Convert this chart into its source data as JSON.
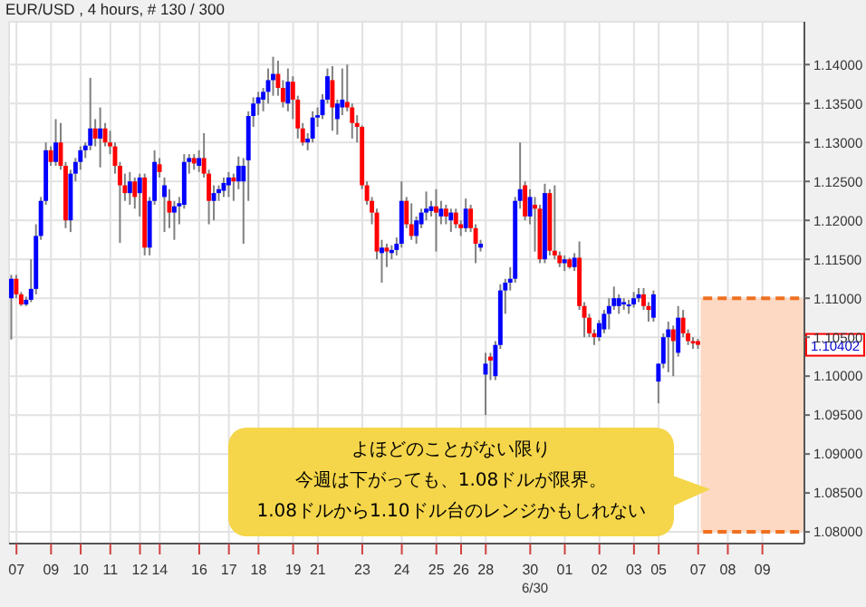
{
  "chart_data": {
    "type": "candlestick",
    "title": "EUR/USD , 4 hours, # 130 / 300",
    "categories": [
      null,
      "07",
      null,
      null,
      null,
      null,
      null,
      null,
      "09",
      null,
      null,
      null,
      null,
      null,
      "10",
      null,
      null,
      null,
      null,
      null,
      "11",
      null,
      null,
      null,
      null,
      null,
      "12",
      null,
      null,
      null,
      "14",
      null,
      null,
      null,
      null,
      null,
      null,
      null,
      "16",
      null,
      null,
      null,
      null,
      null,
      "17",
      null,
      null,
      null,
      null,
      null,
      "18",
      null,
      null,
      null,
      null,
      null,
      null,
      "19",
      null,
      null,
      null,
      null,
      "21",
      null,
      null,
      null,
      null,
      null,
      null,
      null,
      null,
      "23",
      null,
      null,
      null,
      null,
      null,
      null,
      null,
      "24",
      null,
      null,
      null,
      null,
      null,
      null,
      "25",
      null,
      null,
      null,
      null,
      "26",
      null,
      null,
      null,
      null,
      "28",
      null,
      null,
      null,
      null,
      null,
      null,
      null,
      null,
      "30",
      null,
      null,
      null,
      null,
      null,
      null,
      "01",
      null,
      null,
      null,
      null,
      null,
      null,
      "02",
      null,
      null,
      null,
      null,
      null,
      null,
      "03",
      null,
      null,
      null,
      null,
      "05",
      null,
      null,
      null,
      null,
      null,
      null,
      null,
      "07",
      null,
      null,
      null,
      null,
      null,
      "08",
      null,
      null,
      null,
      null,
      null,
      null,
      "09",
      null,
      null,
      null,
      null,
      null,
      null,
      null,
      null
    ],
    "ohlc": [
      [
        1.11,
        1.113,
        1.1047,
        1.1125
      ],
      [
        1.1125,
        1.113,
        1.11,
        1.1105
      ],
      [
        1.1105,
        1.1108,
        1.109,
        1.1092
      ],
      [
        1.1092,
        1.1102,
        1.109,
        1.1098
      ],
      [
        1.1098,
        1.115,
        1.1095,
        1.1112
      ],
      [
        1.1112,
        1.1195,
        1.1105,
        1.118
      ],
      [
        1.118,
        1.123,
        1.1175,
        1.1225
      ],
      [
        1.1225,
        1.13,
        1.122,
        1.129
      ],
      [
        1.129,
        1.1295,
        1.127,
        1.1275
      ],
      [
        1.1275,
        1.133,
        1.127,
        1.13
      ],
      [
        1.13,
        1.1325,
        1.1265,
        1.127
      ],
      [
        1.127,
        1.1275,
        1.119,
        1.12
      ],
      [
        1.12,
        1.1265,
        1.1185,
        1.126
      ],
      [
        1.126,
        1.128,
        1.125,
        1.1275
      ],
      [
        1.1275,
        1.1295,
        1.1265,
        1.129
      ],
      [
        1.129,
        1.13,
        1.128,
        1.1296
      ],
      [
        1.1296,
        1.1383,
        1.129,
        1.1318
      ],
      [
        1.1318,
        1.133,
        1.1295,
        1.1305
      ],
      [
        1.1305,
        1.1345,
        1.1268,
        1.1318
      ],
      [
        1.1318,
        1.1325,
        1.1295,
        1.13
      ],
      [
        1.13,
        1.1315,
        1.1285,
        1.1295
      ],
      [
        1.1295,
        1.13,
        1.126,
        1.127
      ],
      [
        1.127,
        1.1275,
        1.1171,
        1.1245
      ],
      [
        1.1245,
        1.126,
        1.1225,
        1.1235
      ],
      [
        1.1235,
        1.1262,
        1.122,
        1.125
      ],
      [
        1.125,
        1.1255,
        1.1215,
        1.123
      ],
      [
        1.1235,
        1.126,
        1.1205,
        1.1255
      ],
      [
        1.1255,
        1.126,
        1.1155,
        1.1165
      ],
      [
        1.1165,
        1.123,
        1.1155,
        1.1225
      ],
      [
        1.1225,
        1.129,
        1.122,
        1.1275
      ],
      [
        1.1272,
        1.128,
        1.1255,
        1.1262
      ],
      [
        1.123,
        1.1255,
        1.1185,
        1.1245
      ],
      [
        1.1225,
        1.124,
        1.119,
        1.121
      ],
      [
        1.121,
        1.1225,
        1.1175,
        1.1218
      ],
      [
        1.1218,
        1.123,
        1.1195,
        1.1222
      ],
      [
        1.122,
        1.1285,
        1.1215,
        1.1275
      ],
      [
        1.1275,
        1.1285,
        1.126,
        1.128
      ],
      [
        1.128,
        1.1285,
        1.1265,
        1.1273
      ],
      [
        1.127,
        1.129,
        1.1262,
        1.128
      ],
      [
        1.128,
        1.1312,
        1.1255,
        1.126
      ],
      [
        1.126,
        1.1265,
        1.1195,
        1.1225
      ],
      [
        1.1225,
        1.1245,
        1.12,
        1.1235
      ],
      [
        1.1235,
        1.1245,
        1.1225,
        1.124
      ],
      [
        1.1238,
        1.1255,
        1.123,
        1.1248
      ],
      [
        1.1245,
        1.1262,
        1.123,
        1.1255
      ],
      [
        1.1255,
        1.126,
        1.1225,
        1.125
      ],
      [
        1.125,
        1.1282,
        1.124,
        1.127
      ],
      [
        1.125,
        1.128,
        1.117,
        1.127
      ],
      [
        1.1277,
        1.134,
        1.1225,
        1.1334
      ],
      [
        1.1334,
        1.1358,
        1.132,
        1.135
      ],
      [
        1.135,
        1.1365,
        1.1335,
        1.1358
      ],
      [
        1.1355,
        1.137,
        1.134,
        1.1365
      ],
      [
        1.1365,
        1.1395,
        1.135,
        1.138
      ],
      [
        1.138,
        1.141,
        1.136,
        1.1388
      ],
      [
        1.1388,
        1.1405,
        1.136,
        1.137
      ],
      [
        1.137,
        1.138,
        1.1345,
        1.1352
      ],
      [
        1.135,
        1.1395,
        1.134,
        1.1378
      ],
      [
        1.1378,
        1.1385,
        1.133,
        1.1355
      ],
      [
        1.1355,
        1.136,
        1.1305,
        1.1318
      ],
      [
        1.1318,
        1.1325,
        1.1296,
        1.13
      ],
      [
        1.13,
        1.1312,
        1.129,
        1.1305
      ],
      [
        1.1305,
        1.134,
        1.13,
        1.1332
      ],
      [
        1.1332,
        1.1345,
        1.132,
        1.1335
      ],
      [
        1.1335,
        1.1362,
        1.133,
        1.1355
      ],
      [
        1.1355,
        1.1395,
        1.135,
        1.1385
      ],
      [
        1.138,
        1.1398,
        1.1315,
        1.1345
      ],
      [
        1.133,
        1.1355,
        1.131,
        1.135
      ],
      [
        1.1345,
        1.1395,
        1.1335,
        1.1355
      ],
      [
        1.1352,
        1.14,
        1.134,
        1.1345
      ],
      [
        1.1345,
        1.135,
        1.1305,
        1.1325
      ],
      [
        1.1325,
        1.1335,
        1.13,
        1.132
      ],
      [
        1.132,
        1.1322,
        1.124,
        1.1245
      ],
      [
        1.1245,
        1.125,
        1.122,
        1.1225
      ],
      [
        1.1225,
        1.123,
        1.1195,
        1.121
      ],
      [
        1.121,
        1.1215,
        1.115,
        1.116
      ],
      [
        1.1158,
        1.1175,
        1.112,
        1.1165
      ],
      [
        1.1165,
        1.117,
        1.114,
        1.116
      ],
      [
        1.1158,
        1.1168,
        1.115,
        1.1162
      ],
      [
        1.1162,
        1.1178,
        1.1155,
        1.117
      ],
      [
        1.117,
        1.125,
        1.1165,
        1.1225
      ],
      [
        1.1225,
        1.123,
        1.119,
        1.1195
      ],
      [
        1.1195,
        1.1222,
        1.1175,
        1.118
      ],
      [
        1.118,
        1.1205,
        1.117,
        1.12
      ],
      [
        1.1195,
        1.1215,
        1.119,
        1.121
      ],
      [
        1.121,
        1.1237,
        1.12,
        1.1215
      ],
      [
        1.1212,
        1.1225,
        1.1205,
        1.1218
      ],
      [
        1.1218,
        1.124,
        1.116,
        1.121
      ],
      [
        1.1205,
        1.1225,
        1.1195,
        1.1215
      ],
      [
        1.1215,
        1.122,
        1.1195,
        1.1205
      ],
      [
        1.12,
        1.1215,
        1.1185,
        1.121
      ],
      [
        1.121,
        1.1215,
        1.119,
        1.1195
      ],
      [
        1.1195,
        1.12,
        1.118,
        1.119
      ],
      [
        1.119,
        1.1228,
        1.1185,
        1.1215
      ],
      [
        1.1215,
        1.122,
        1.1185,
        1.119
      ],
      [
        1.119,
        1.1195,
        1.1145,
        1.117
      ],
      [
        1.1165,
        1.1175,
        1.116,
        1.117
      ],
      [
        1.1002,
        1.103,
        1.095,
        1.1016
      ],
      [
        1.1025,
        1.103,
        1.0995,
        1.102
      ],
      [
        1.1,
        1.1045,
        1.0995,
        1.104
      ],
      [
        1.104,
        1.1118,
        1.1035,
        1.111
      ],
      [
        1.111,
        1.1125,
        1.108,
        1.112
      ],
      [
        1.112,
        1.114,
        1.111,
        1.1125
      ],
      [
        1.1125,
        1.123,
        1.112,
        1.1225
      ],
      [
        1.1225,
        1.13,
        1.1215,
        1.124
      ],
      [
        1.1245,
        1.125,
        1.12,
        1.1205
      ],
      [
        1.1205,
        1.124,
        1.1195,
        1.123
      ],
      [
        1.122,
        1.123,
        1.116,
        1.1215
      ],
      [
        1.1215,
        1.122,
        1.1145,
        1.115
      ],
      [
        1.115,
        1.1247,
        1.1145,
        1.1235
      ],
      [
        1.1235,
        1.124,
        1.1155,
        1.1161
      ],
      [
        1.1161,
        1.1245,
        1.115,
        1.1155
      ],
      [
        1.1155,
        1.116,
        1.114,
        1.1145
      ],
      [
        1.1145,
        1.1155,
        1.1135,
        1.115
      ],
      [
        1.115,
        1.1152,
        1.1138,
        1.114
      ],
      [
        1.114,
        1.1158,
        1.1135,
        1.1152
      ],
      [
        1.1152,
        1.1173,
        1.1085,
        1.109
      ],
      [
        1.109,
        1.1095,
        1.105,
        1.1075
      ],
      [
        1.1075,
        1.108,
        1.105,
        1.1055
      ],
      [
        1.1055,
        1.106,
        1.104,
        1.105
      ],
      [
        1.105,
        1.1072,
        1.1045,
        1.1068
      ],
      [
        1.106,
        1.1085,
        1.1055,
        1.108
      ],
      [
        1.108,
        1.11,
        1.106,
        1.109
      ],
      [
        1.109,
        1.1115,
        1.1085,
        1.11
      ],
      [
        1.109,
        1.1105,
        1.108,
        1.11
      ],
      [
        1.1092,
        1.11,
        1.1085,
        1.1095
      ],
      [
        1.109,
        1.1098,
        1.108,
        1.1092
      ],
      [
        1.1092,
        1.1108,
        1.1088,
        1.11
      ],
      [
        1.11,
        1.1113,
        1.1095,
        1.1105
      ],
      [
        1.1105,
        1.1113,
        1.1085,
        1.109
      ],
      [
        1.109,
        1.1095,
        1.107,
        1.1085
      ],
      [
        1.1075,
        1.111,
        1.107,
        1.1105
      ],
      [
        1.0993,
        1.1016,
        1.0965,
        1.1016
      ],
      [
        1.1016,
        1.1055,
        1.101,
        1.105
      ],
      [
        1.105,
        1.107,
        1.1005,
        1.106
      ],
      [
        1.106,
        1.1065,
        1.1,
        1.1045
      ],
      [
        1.103,
        1.109,
        1.1025,
        1.1075
      ],
      [
        1.1075,
        1.1085,
        1.105,
        1.1055
      ],
      [
        1.1055,
        1.106,
        1.104,
        1.1045
      ],
      [
        1.1045,
        1.105,
        1.1035,
        1.1042
      ],
      [
        1.1045,
        1.1048,
        1.1035,
        1.10402
      ],
      null,
      null,
      null,
      null,
      null,
      null,
      null,
      null,
      null,
      null,
      null,
      null,
      null,
      null,
      null,
      null,
      null,
      null,
      null,
      null,
      null
    ],
    "ylim": [
      1.0785,
      1.1455
    ],
    "yticks": [
      {
        "value": 1.08,
        "label": "1.08000"
      },
      {
        "value": 1.085,
        "label": "1.08500"
      },
      {
        "value": 1.09,
        "label": "1.09000"
      },
      {
        "value": 1.095,
        "label": "1.09500"
      },
      {
        "value": 1.1,
        "label": "1.10000"
      },
      {
        "value": 1.105,
        "label": "1.10500"
      },
      {
        "value": 1.11,
        "label": "1.11000"
      },
      {
        "value": 1.115,
        "label": "1.11500"
      },
      {
        "value": 1.12,
        "label": "1.12000"
      },
      {
        "value": 1.125,
        "label": "1.12500"
      },
      {
        "value": 1.13,
        "label": "1.13000"
      },
      {
        "value": 1.135,
        "label": "1.13500"
      },
      {
        "value": 1.14,
        "label": "1.14000"
      }
    ],
    "grid": true,
    "bands": [
      {
        "axis": "y",
        "from": 1.08,
        "to": 1.11,
        "color": "#fdd9c4"
      }
    ],
    "ref_lines": [
      {
        "axis": "y",
        "value": 1.11,
        "color": "#f07020",
        "line_style": "dashed"
      },
      {
        "axis": "y",
        "value": 1.08,
        "color": "#f07020",
        "line_style": "dashed"
      }
    ],
    "annotations": [
      "よほどのことがない限り",
      "今週は下がっても、1.08ドルが限界。",
      "1.08ドルから1.10ドル台のレンジかもしれない",
      {
        "text": "1.10402",
        "y": 1.10402
      },
      "6/30"
    ]
  }
}
